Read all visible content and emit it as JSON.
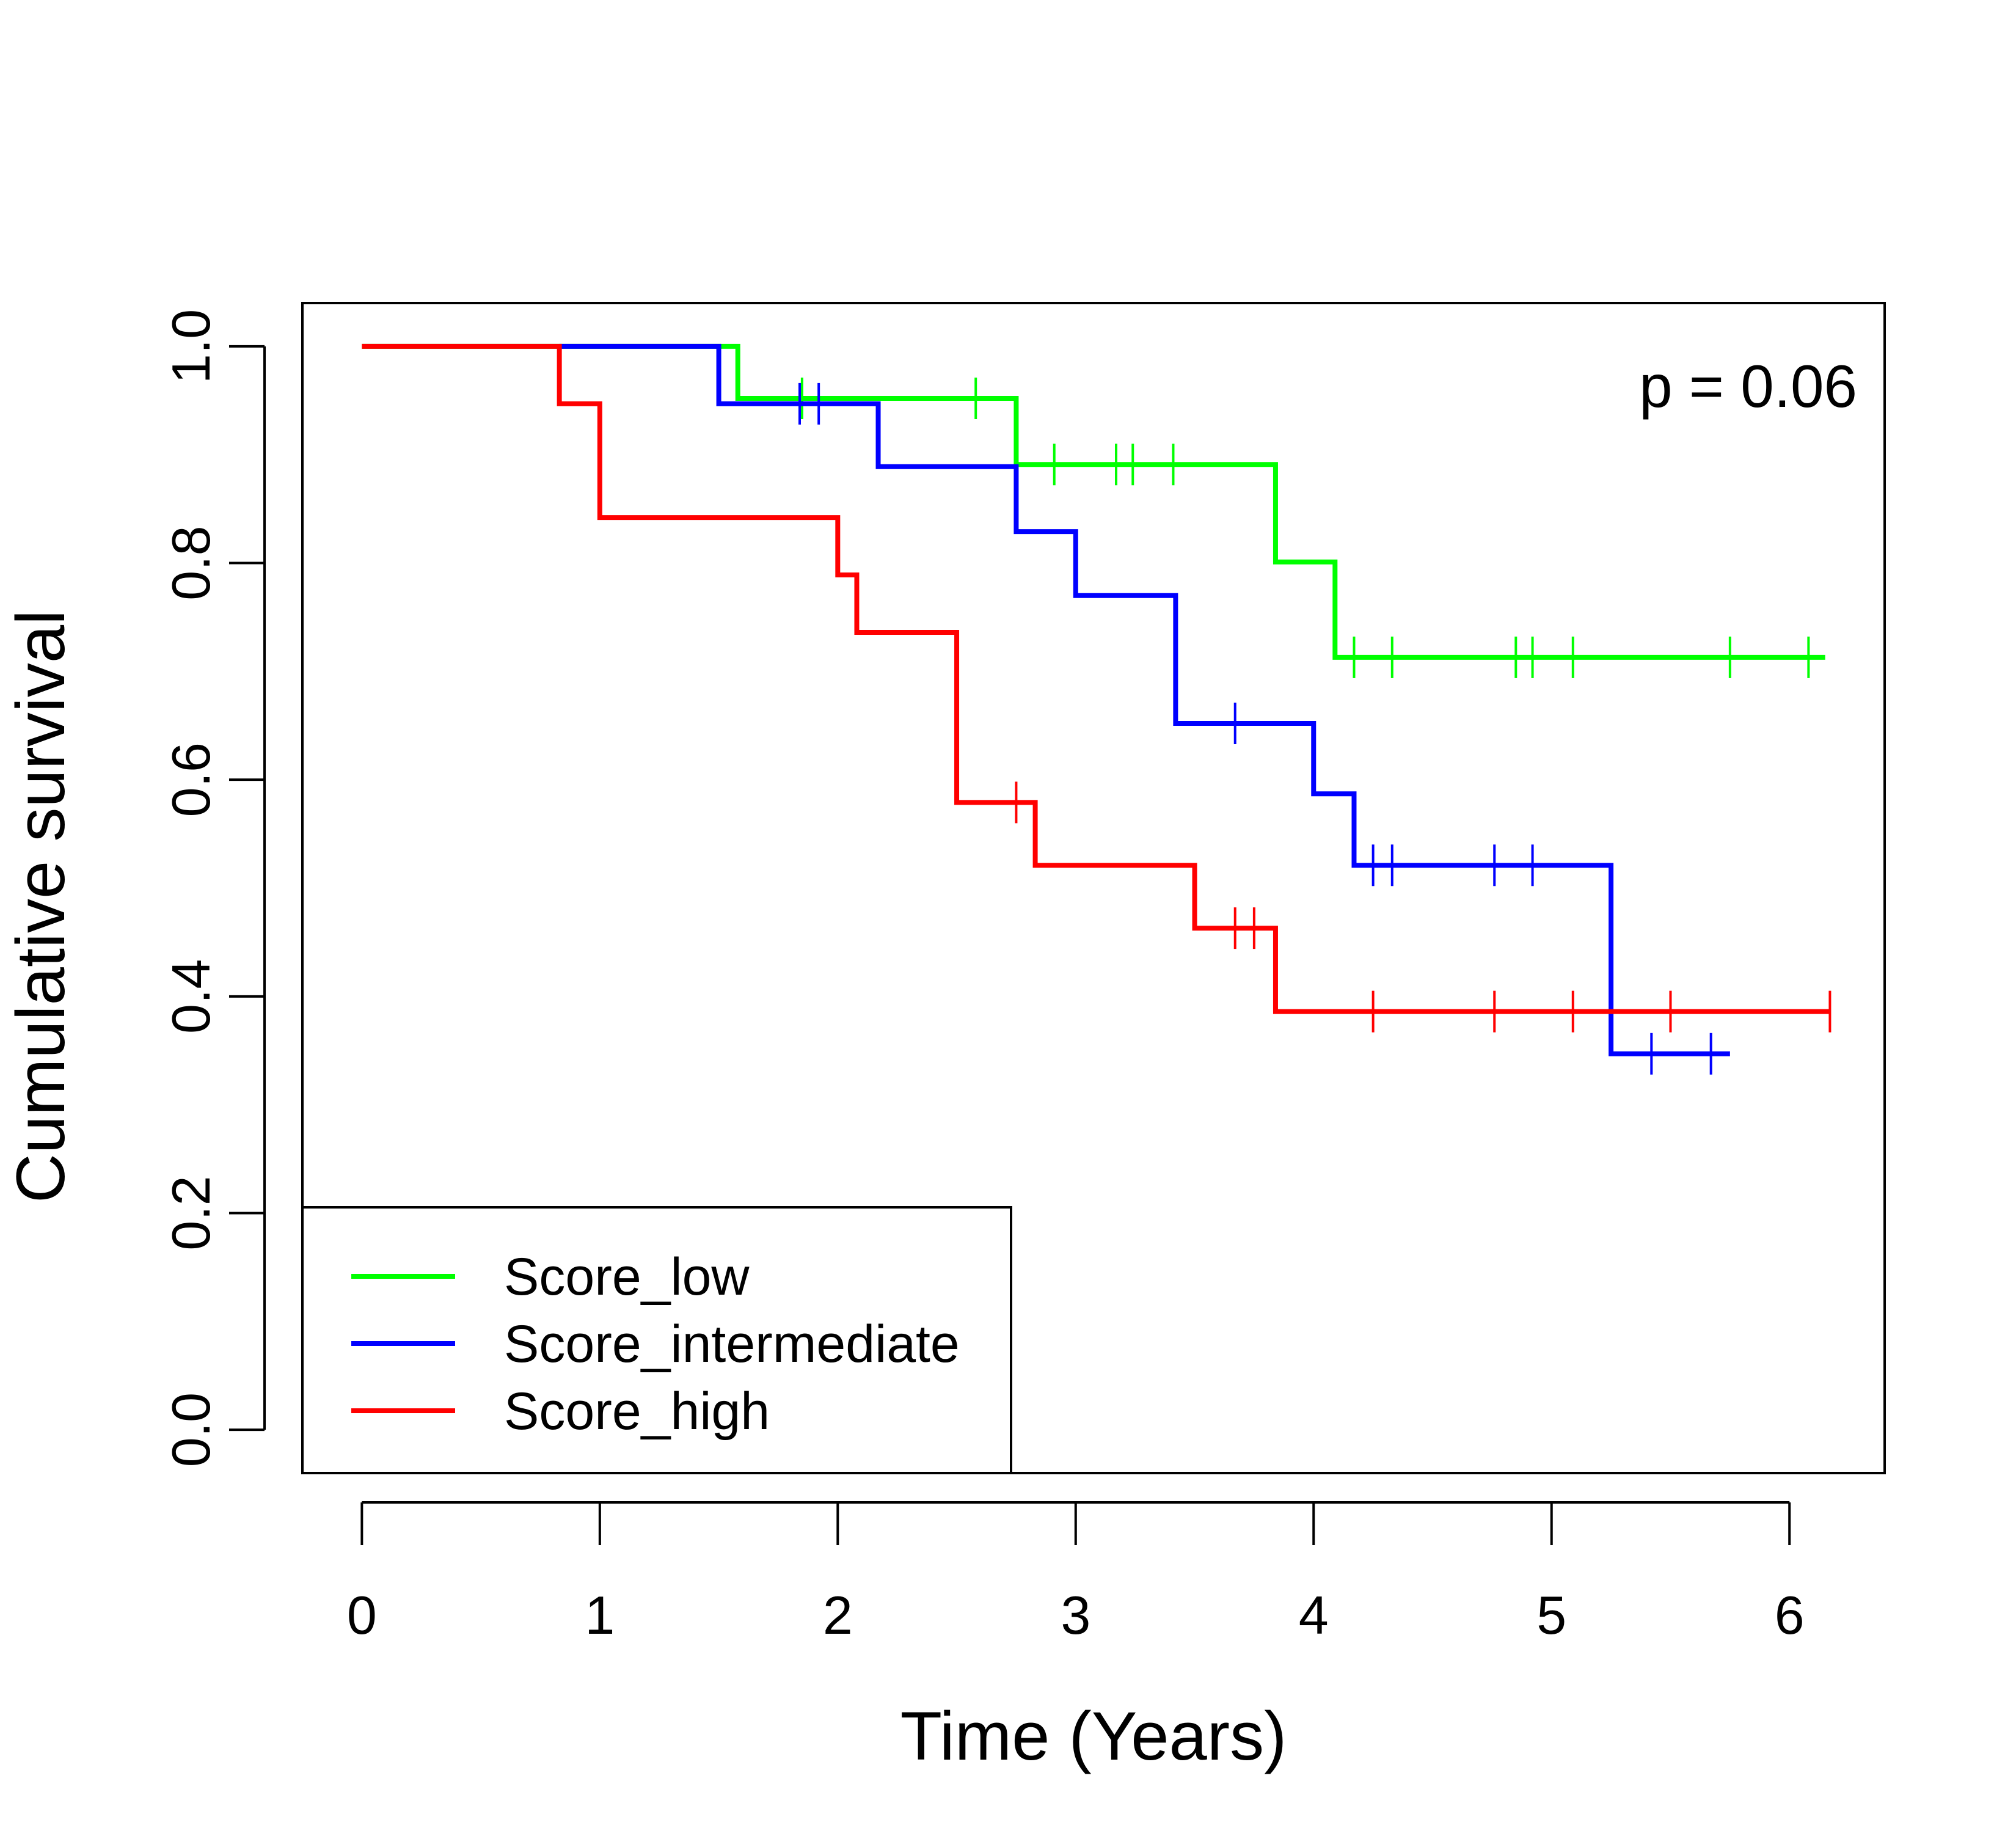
{
  "chart_data": {
    "type": "line",
    "subtype": "kaplan-meier step curves with censor marks",
    "xlabel": "Time (Years)",
    "ylabel": "Cumulative survival",
    "xlim": [
      -0.25,
      6.4
    ],
    "ylim": [
      -0.04,
      1.04
    ],
    "xticks": [
      0,
      1,
      2,
      3,
      4,
      5,
      6
    ],
    "xtick_labels": [
      "0",
      "1",
      "2",
      "3",
      "4",
      "5",
      "6"
    ],
    "yticks": [
      0.0,
      0.2,
      0.4,
      0.6,
      0.8,
      1.0
    ],
    "ytick_labels": [
      "0.0",
      "0.2",
      "0.4",
      "0.6",
      "0.8",
      "1.0"
    ],
    "grid": false,
    "legend_position": "bottom-left",
    "annotation": "p = 0.06",
    "series": [
      {
        "name": "Score_low",
        "color": "#00ff00",
        "steps": [
          [
            0,
            1.0
          ],
          [
            1.58,
            0.952
          ],
          [
            2.75,
            0.891
          ],
          [
            3.84,
            0.801
          ],
          [
            4.09,
            0.713
          ]
        ],
        "end_x": 6.15,
        "censor": [
          [
            1.85,
            0.952
          ],
          [
            2.58,
            0.952
          ],
          [
            2.91,
            0.891
          ],
          [
            3.17,
            0.891
          ],
          [
            3.24,
            0.891
          ],
          [
            3.41,
            0.891
          ],
          [
            4.17,
            0.713
          ],
          [
            4.33,
            0.713
          ],
          [
            4.85,
            0.713
          ],
          [
            4.92,
            0.713
          ],
          [
            5.09,
            0.713
          ],
          [
            5.75,
            0.713
          ],
          [
            6.08,
            0.713
          ]
        ]
      },
      {
        "name": "Score_intermediate",
        "color": "#0000ff",
        "steps": [
          [
            0.83,
            1.0
          ],
          [
            1.5,
            0.947
          ],
          [
            2.17,
            0.889
          ],
          [
            2.75,
            0.829
          ],
          [
            3.0,
            0.77
          ],
          [
            3.42,
            0.652
          ],
          [
            4.0,
            0.587
          ],
          [
            4.17,
            0.521
          ],
          [
            5.25,
            0.347
          ]
        ],
        "end_x": 5.75,
        "censor": [
          [
            1.84,
            0.947
          ],
          [
            1.92,
            0.947
          ],
          [
            3.67,
            0.652
          ],
          [
            4.17,
            0.554
          ],
          [
            4.25,
            0.521
          ],
          [
            4.33,
            0.521
          ],
          [
            4.76,
            0.521
          ],
          [
            4.92,
            0.521
          ],
          [
            5.42,
            0.347
          ],
          [
            5.67,
            0.347
          ]
        ]
      },
      {
        "name": "Score_high",
        "color": "#ff0000",
        "steps": [
          [
            0,
            1.0
          ],
          [
            0.83,
            0.947
          ],
          [
            1.0,
            0.842
          ],
          [
            2.0,
            0.789
          ],
          [
            2.08,
            0.736
          ],
          [
            2.5,
            0.579
          ],
          [
            2.83,
            0.521
          ],
          [
            3.5,
            0.463
          ],
          [
            3.84,
            0.386
          ]
        ],
        "end_x": 6.17,
        "censor": [
          [
            2.75,
            0.579
          ],
          [
            3.67,
            0.463
          ],
          [
            3.75,
            0.463
          ],
          [
            4.25,
            0.386
          ],
          [
            4.76,
            0.386
          ],
          [
            5.09,
            0.386
          ],
          [
            5.5,
            0.386
          ],
          [
            6.17,
            0.386
          ]
        ]
      }
    ]
  }
}
